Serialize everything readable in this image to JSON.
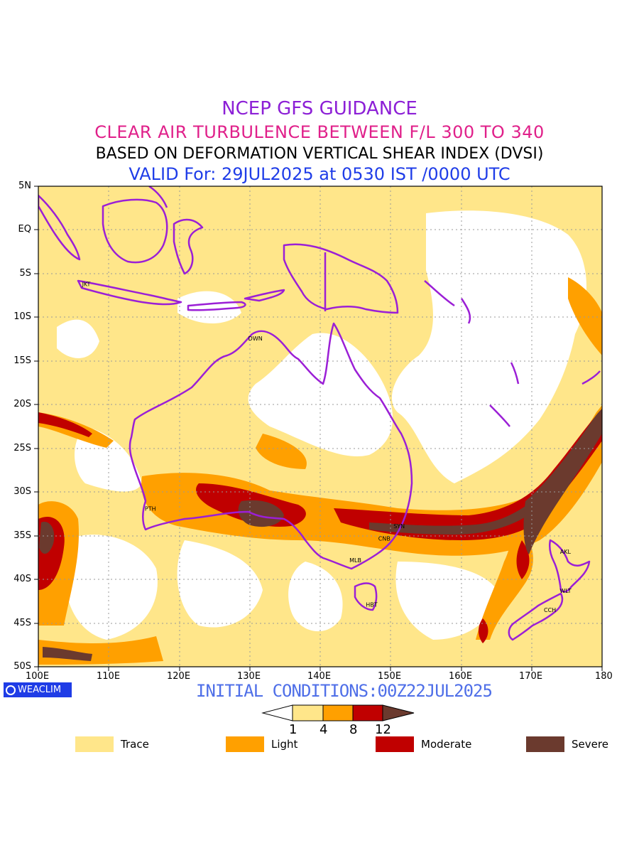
{
  "header": {
    "line1": "NCEP GFS GUIDANCE",
    "line2": "CLEAR AIR TURBULENCE BETWEEN F/L 300 TO 340",
    "line3": "BASED ON DEFORMATION VERTICAL SHEAR INDEX (DVSI)",
    "line4": "VALID For: 29JUL2025 at 0530 IST /0000 UTC"
  },
  "axes": {
    "lat_labels": [
      "5N",
      "EQ",
      "5S",
      "10S",
      "15S",
      "20S",
      "25S",
      "30S",
      "35S",
      "40S",
      "45S",
      "50S"
    ],
    "lon_labels": [
      "100E",
      "110E",
      "120E",
      "130E",
      "140E",
      "150E",
      "160E",
      "170E",
      "180"
    ],
    "lat_range": [
      -50,
      5
    ],
    "lon_range": [
      100,
      180
    ]
  },
  "stations": [
    {
      "code": "JKT",
      "lon": 106.8,
      "lat": -6.2
    },
    {
      "code": "DWN",
      "lon": 130.8,
      "lat": -12.4
    },
    {
      "code": "PTH",
      "lon": 115.9,
      "lat": -31.9
    },
    {
      "code": "SYN",
      "lon": 151.2,
      "lat": -33.9
    },
    {
      "code": "CNB",
      "lon": 149.1,
      "lat": -35.3
    },
    {
      "code": "MLB",
      "lon": 145.0,
      "lat": -37.8
    },
    {
      "code": "HBT",
      "lon": 147.3,
      "lat": -42.9
    },
    {
      "code": "AKL",
      "lon": 174.8,
      "lat": -36.8
    },
    {
      "code": "WLT",
      "lon": 174.8,
      "lat": -41.3
    },
    {
      "code": "CCH",
      "lon": 172.6,
      "lat": -43.5
    }
  ],
  "footer": {
    "logo_text": "WEACLIM",
    "initial_conditions": "INITIAL CONDITIONS:00Z22JUL2025"
  },
  "colorbar": {
    "ticks": [
      "1",
      "4",
      "8",
      "12"
    ],
    "colors": [
      "#ffffff",
      "#ffe68a",
      "#ffa000",
      "#c00000",
      "#6b3a2e"
    ]
  },
  "legend": [
    {
      "label": "Trace",
      "color": "#ffe68a"
    },
    {
      "label": "Light",
      "color": "#ffa000"
    },
    {
      "label": "Moderate",
      "color": "#c00000"
    },
    {
      "label": "Severe",
      "color": "#6b3a2e"
    }
  ],
  "colors": {
    "coastline": "#9b1fd6",
    "grid": "#999999"
  }
}
